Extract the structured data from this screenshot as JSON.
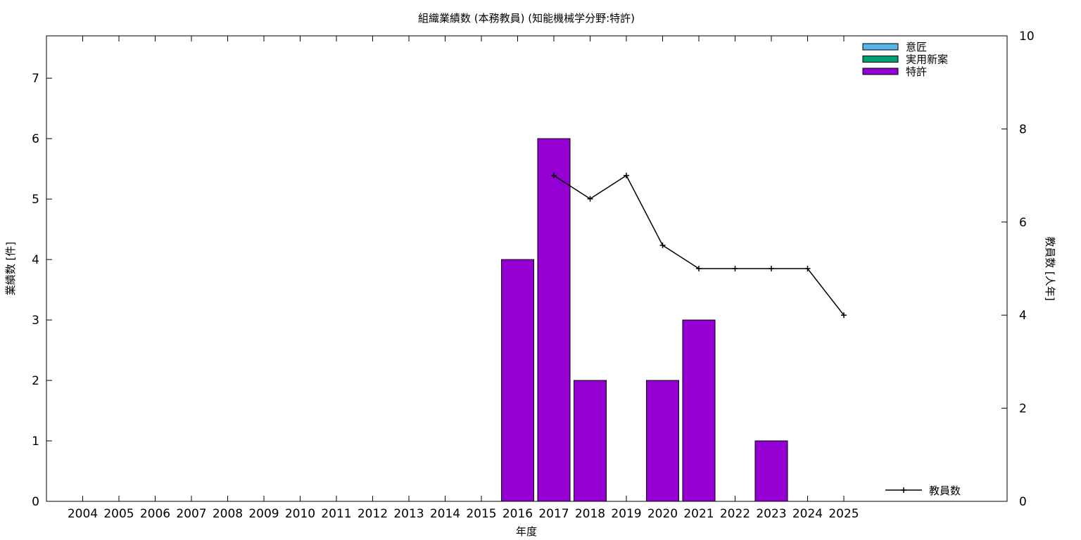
{
  "chart_data": {
    "type": "bar",
    "title": "組織業績数 (本務教員) (知能機械学分野:特許)",
    "xlabel": "年度",
    "ylabel": "業績数 [件]",
    "y2label": "教員数 [人年]",
    "categories": [
      "2004",
      "2005",
      "2006",
      "2007",
      "2008",
      "2009",
      "2010",
      "2011",
      "2012",
      "2013",
      "2014",
      "2015",
      "2016",
      "2017",
      "2018",
      "2019",
      "2020",
      "2021",
      "2022",
      "2023",
      "2024",
      "2025"
    ],
    "ylim": [
      0,
      7.7
    ],
    "yticks": [
      0,
      1,
      2,
      3,
      4,
      5,
      6,
      7
    ],
    "y2lim": [
      0,
      10
    ],
    "y2ticks": [
      0,
      2,
      4,
      6,
      8,
      10
    ],
    "grid": false,
    "stacked": true,
    "series": [
      {
        "name": "意匠",
        "color": "#56b4e9",
        "axis": "left",
        "kind": "bar",
        "values": [
          0,
          0,
          0,
          0,
          0,
          0,
          0,
          0,
          0,
          0,
          0,
          0,
          0,
          0,
          0,
          0,
          0,
          0,
          0,
          0,
          0,
          0
        ]
      },
      {
        "name": "実用新案",
        "color": "#009e73",
        "axis": "left",
        "kind": "bar",
        "values": [
          0,
          0,
          0,
          0,
          0,
          0,
          0,
          0,
          0,
          0,
          0,
          0,
          0,
          0,
          0,
          0,
          0,
          0,
          0,
          0,
          0,
          0
        ]
      },
      {
        "name": "特許",
        "color": "#9400d3",
        "axis": "left",
        "kind": "bar",
        "values": [
          0,
          0,
          0,
          0,
          0,
          0,
          0,
          0,
          0,
          0,
          0,
          0,
          4,
          6,
          2,
          0,
          2,
          3,
          0,
          1,
          0,
          0
        ]
      },
      {
        "name": "教員数",
        "color": "#000000",
        "axis": "right",
        "kind": "line",
        "values": [
          null,
          null,
          null,
          null,
          null,
          null,
          null,
          null,
          null,
          null,
          null,
          null,
          null,
          7,
          6.5,
          7,
          5.5,
          5,
          5,
          5,
          5,
          4
        ]
      }
    ],
    "legend_placement": "top-right",
    "line_legend_placement": "bottom-right"
  }
}
